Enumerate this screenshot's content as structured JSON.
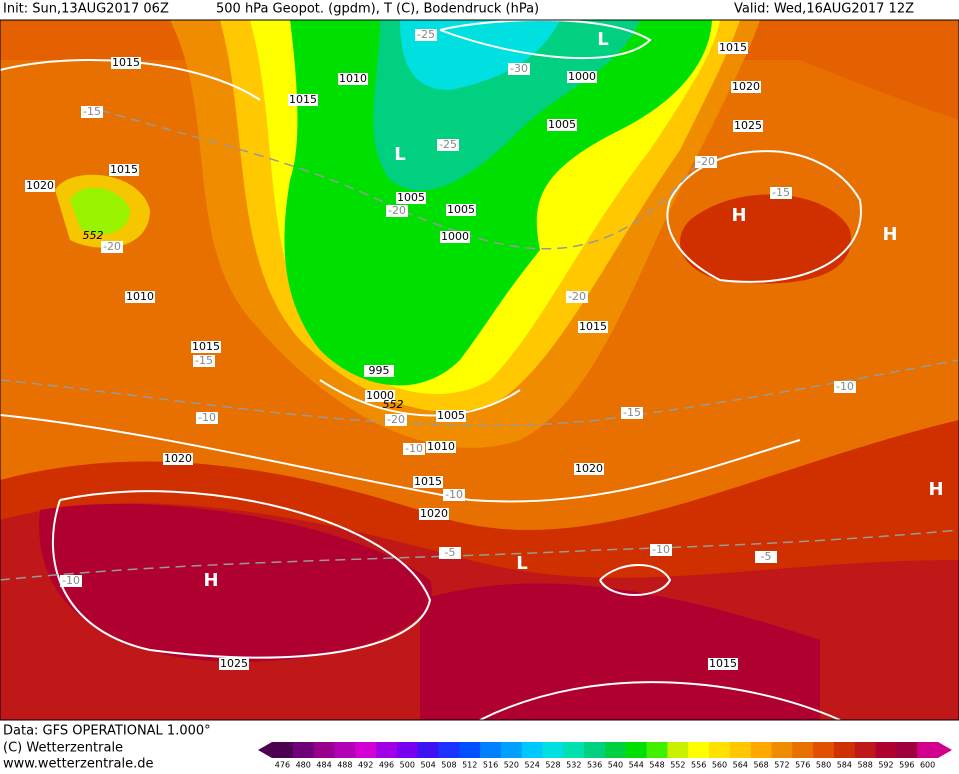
{
  "header": {
    "init": "Init: Sun,13AUG2017 06Z",
    "title": "500 hPa Geopot. (gpdm), T (C), Bodendruck (hPa)",
    "valid": "Valid: Wed,16AUG2017 12Z"
  },
  "map": {
    "pressure_labels": [
      1015,
      1010,
      1015,
      1020,
      1015,
      1010,
      1015,
      1020,
      1015,
      1020,
      1010,
      1005,
      1000,
      995,
      1000,
      1005,
      1005,
      1005,
      1000,
      1015,
      1020,
      1025,
      1015,
      1020,
      1025,
      1015
    ],
    "temperature_labels": [
      -25,
      -30,
      -25,
      -20,
      -15,
      -20,
      -15,
      -10,
      -20,
      -10,
      -10,
      -5,
      -10,
      -10,
      -5,
      -15,
      -20,
      -20,
      -15,
      -10
    ],
    "geopotential_labels": [
      552,
      552
    ],
    "centers": [
      "L",
      "L",
      "H",
      "H",
      "H",
      "H",
      "L"
    ]
  },
  "footer": {
    "source": "Data: GFS OPERATIONAL 1.000°",
    "copyright": "(C) Wetterzentrale",
    "url": "www.wetterzentrale.de"
  },
  "colorbar": {
    "values": [
      476,
      480,
      484,
      488,
      492,
      496,
      500,
      504,
      508,
      512,
      516,
      520,
      524,
      528,
      532,
      536,
      540,
      544,
      548,
      552,
      556,
      560,
      564,
      568,
      572,
      576,
      580,
      584,
      588,
      592,
      596,
      600
    ],
    "colors": [
      "#4b0050",
      "#6e0078",
      "#96008c",
      "#b400b4",
      "#d200d2",
      "#a000e6",
      "#7800f0",
      "#3c14f0",
      "#1e32ff",
      "#0050ff",
      "#0080ff",
      "#00a0ff",
      "#00c8ff",
      "#00e0e0",
      "#00e0b0",
      "#00d080",
      "#00d040",
      "#00e000",
      "#40f000",
      "#c8f000",
      "#ffff00",
      "#ffe000",
      "#ffc800",
      "#ffa800",
      "#f08c00",
      "#e87000",
      "#e05000",
      "#d03000",
      "#c01818",
      "#b00030",
      "#a00040",
      "#d0008c"
    ]
  }
}
